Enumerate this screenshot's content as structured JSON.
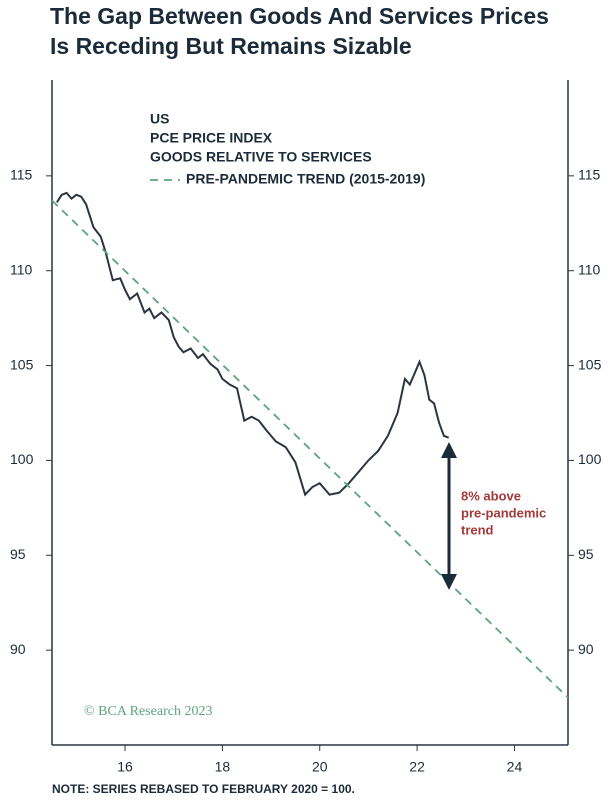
{
  "chart_data": {
    "type": "line",
    "title": [
      "The Gap Between Goods And Services Prices",
      "Is Receding But Remains Sizable"
    ],
    "xlim": [
      14.5,
      25.1
    ],
    "xticks": [
      16,
      18,
      20,
      22,
      24
    ],
    "ylim": [
      85,
      120
    ],
    "yticks": [
      90,
      95,
      100,
      105,
      110,
      115
    ],
    "y2lim": [
      85,
      120
    ],
    "y2ticks": [
      90,
      95,
      100,
      105,
      110,
      115
    ],
    "series": [
      {
        "name": [
          "US",
          "PCE PRICE INDEX",
          "GOODS RELATIVE TO SERVICES"
        ],
        "color": "#2b3440",
        "style": "solid",
        "x": [
          14.6,
          14.7,
          14.8,
          14.9,
          15.0,
          15.1,
          15.2,
          15.35,
          15.5,
          15.6,
          15.75,
          15.9,
          16.0,
          16.1,
          16.25,
          16.4,
          16.5,
          16.6,
          16.75,
          16.9,
          17.0,
          17.1,
          17.2,
          17.35,
          17.5,
          17.6,
          17.75,
          17.9,
          18.0,
          18.15,
          18.3,
          18.45,
          18.6,
          18.75,
          18.9,
          19.1,
          19.3,
          19.5,
          19.7,
          19.85,
          20.0,
          20.2,
          20.4,
          20.6,
          20.8,
          21.0,
          21.2,
          21.4,
          21.6,
          21.75,
          21.85,
          21.95,
          22.05,
          22.15,
          22.25,
          22.35,
          22.45,
          22.55,
          22.65
        ],
        "values": [
          113.6,
          114.0,
          114.1,
          113.8,
          114.0,
          113.9,
          113.5,
          112.3,
          111.8,
          111.0,
          109.5,
          109.6,
          109.0,
          108.5,
          108.8,
          107.8,
          108.0,
          107.5,
          107.8,
          107.4,
          106.5,
          106.0,
          105.7,
          105.9,
          105.4,
          105.6,
          105.1,
          104.8,
          104.3,
          104.0,
          103.8,
          102.1,
          102.3,
          102.1,
          101.6,
          101.0,
          100.7,
          99.9,
          98.2,
          98.6,
          98.8,
          98.2,
          98.3,
          98.8,
          99.4,
          100.0,
          100.5,
          101.3,
          102.5,
          104.3,
          104.0,
          104.6,
          105.2,
          104.5,
          103.2,
          103.0,
          102.0,
          101.3,
          101.2
        ]
      },
      {
        "name": "PRE-PANDEMIC TREND (2015-2019)",
        "color": "#5aa57e",
        "style": "dashed",
        "x": [
          14.5,
          25.1
        ],
        "values": [
          113.7,
          87.5
        ]
      }
    ],
    "annotation": [
      "8% above",
      "pre-pandemic",
      "trend"
    ],
    "credit": "© BCA Research 2023",
    "note": "NOTE: SERIES REBASED TO FEBRUARY 2020 = 100."
  }
}
